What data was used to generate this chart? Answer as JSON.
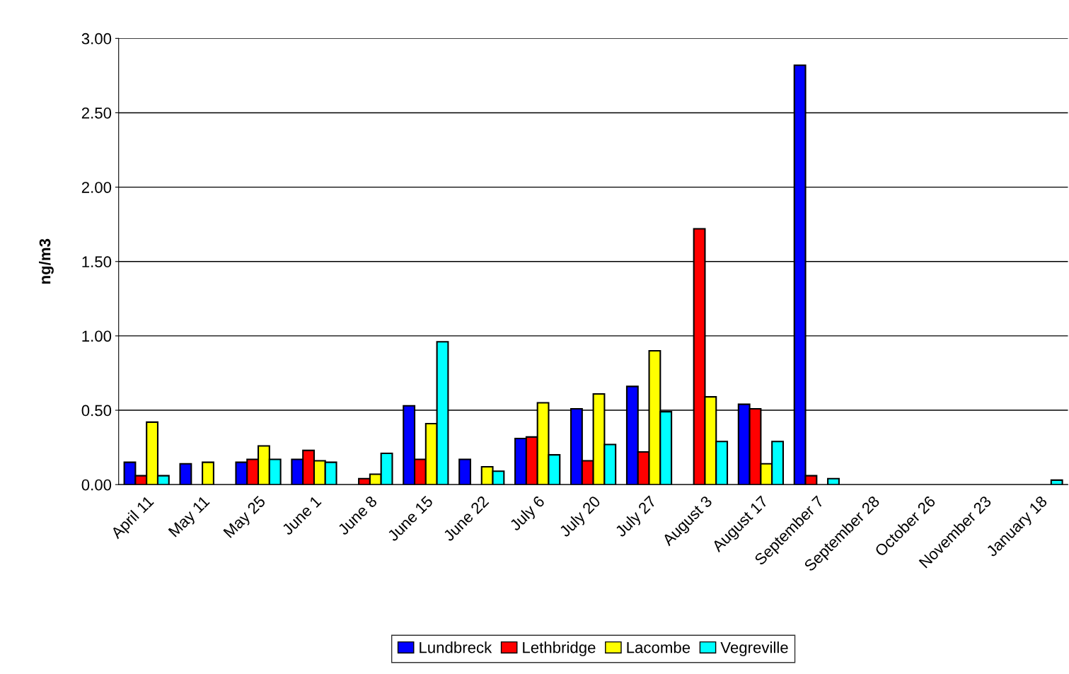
{
  "chart_data": {
    "type": "bar",
    "ylabel": "ng/m3",
    "categories": [
      "April 11",
      "May 11",
      "May 25",
      "June 1",
      "June 8",
      "June 15",
      "June 22",
      "July 6",
      "July 20",
      "July 27",
      "August 3",
      "August 17",
      "September 7",
      "September 28",
      "October 26",
      "November 23",
      "January 18"
    ],
    "series": [
      {
        "name": "Lundbreck",
        "color": "#0000ff",
        "values": [
          0.15,
          0.14,
          0.15,
          0.17,
          null,
          0.53,
          0.17,
          0.31,
          0.51,
          0.66,
          null,
          0.54,
          2.82,
          null,
          null,
          null,
          null
        ]
      },
      {
        "name": "Lethbridge",
        "color": "#ff0000",
        "values": [
          0.06,
          null,
          0.17,
          0.23,
          0.04,
          0.17,
          null,
          0.32,
          0.16,
          0.22,
          1.72,
          0.51,
          0.06,
          null,
          null,
          null,
          null
        ]
      },
      {
        "name": "Lacombe",
        "color": "#ffff00",
        "values": [
          0.42,
          0.15,
          0.26,
          0.16,
          0.07,
          0.41,
          0.12,
          0.55,
          0.61,
          0.9,
          0.59,
          0.14,
          null,
          null,
          null,
          null,
          null
        ]
      },
      {
        "name": "Vegreville",
        "color": "#00ffff",
        "values": [
          0.06,
          null,
          0.17,
          0.15,
          0.21,
          0.96,
          0.09,
          0.2,
          0.27,
          0.49,
          0.29,
          0.29,
          0.04,
          null,
          null,
          null,
          0.03
        ]
      }
    ],
    "ylim": [
      0,
      3
    ],
    "yticks": [
      {
        "value": 0,
        "label": "0.00"
      },
      {
        "value": 0.5,
        "label": "0.50"
      },
      {
        "value": 1,
        "label": "1.00"
      },
      {
        "value": 1.5,
        "label": "1.50"
      },
      {
        "value": 2,
        "label": "2.00"
      },
      {
        "value": 2.5,
        "label": "2.50"
      },
      {
        "value": 3,
        "label": "3.00"
      }
    ],
    "grid": "y",
    "legend": "bottom"
  }
}
